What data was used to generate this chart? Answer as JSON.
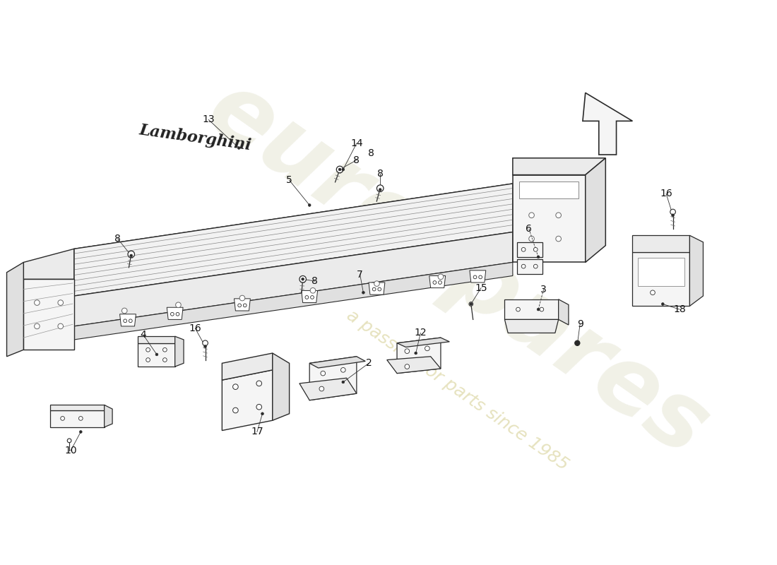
{
  "bg_color": "#ffffff",
  "line_color": "#2a2a2a",
  "fill_light": "#f5f5f5",
  "fill_mid": "#ebebeb",
  "fill_dark": "#e0e0e0",
  "watermark1": "eurospares",
  "watermark2": "a passion for parts since 1985",
  "script_logo": "Lamborghini",
  "label_fontsize": 10,
  "label_color": "#111111"
}
